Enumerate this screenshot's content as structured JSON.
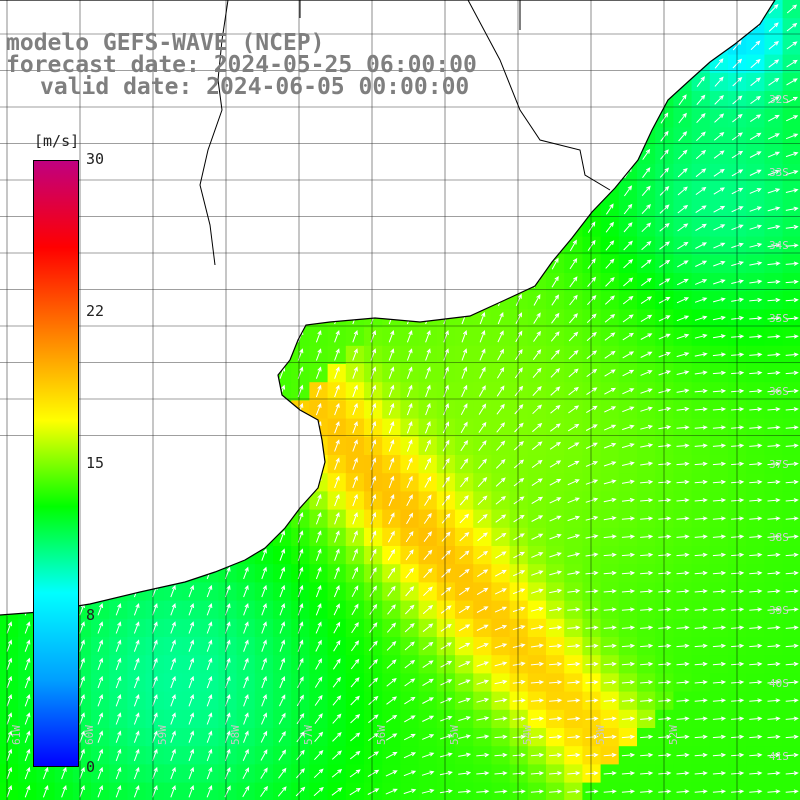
{
  "header": {
    "line1": "modelo GEFS-WAVE (NCEP)",
    "line2": "forecast date: 2024-05-25 06:00:00",
    "line3": "valid date: 2024-06-05 00:00:00"
  },
  "colorbar": {
    "unit": "[m/s]",
    "ticks": [
      "30",
      "22",
      "15",
      "8",
      "0"
    ],
    "tick_values": [
      30,
      22,
      15,
      8,
      0
    ],
    "min": 0,
    "max": 30,
    "colors": [
      "#0000ff",
      "#00a0ff",
      "#00ffff",
      "#00ff00",
      "#ffff00",
      "#ff8000",
      "#ff0000",
      "#c00080"
    ]
  },
  "map": {
    "lat_labels": [
      "32S",
      "33S",
      "34S",
      "35S",
      "36S",
      "37S",
      "38S",
      "39S",
      "40S",
      "41S"
    ],
    "lon_labels": [
      "61W",
      "60W",
      "59W",
      "58W",
      "57W",
      "56W",
      "55W",
      "54W",
      "53W",
      "52W"
    ],
    "lon_values": [
      -61,
      -60,
      -59,
      -58,
      -57,
      -56,
      -55,
      -54,
      -53,
      -52
    ],
    "lat_values": [
      -32,
      -33,
      -34,
      -35,
      -36,
      -37,
      -38,
      -39,
      -40,
      -41
    ],
    "lon_range": [
      -61.3,
      -50.9
    ],
    "lat_range": [
      -31.0,
      -41.1
    ],
    "grid": true,
    "field_variable": "wind speed",
    "arrow_color": "#ffffff",
    "coast_color": "#000000",
    "grid_color": "#000000"
  }
}
